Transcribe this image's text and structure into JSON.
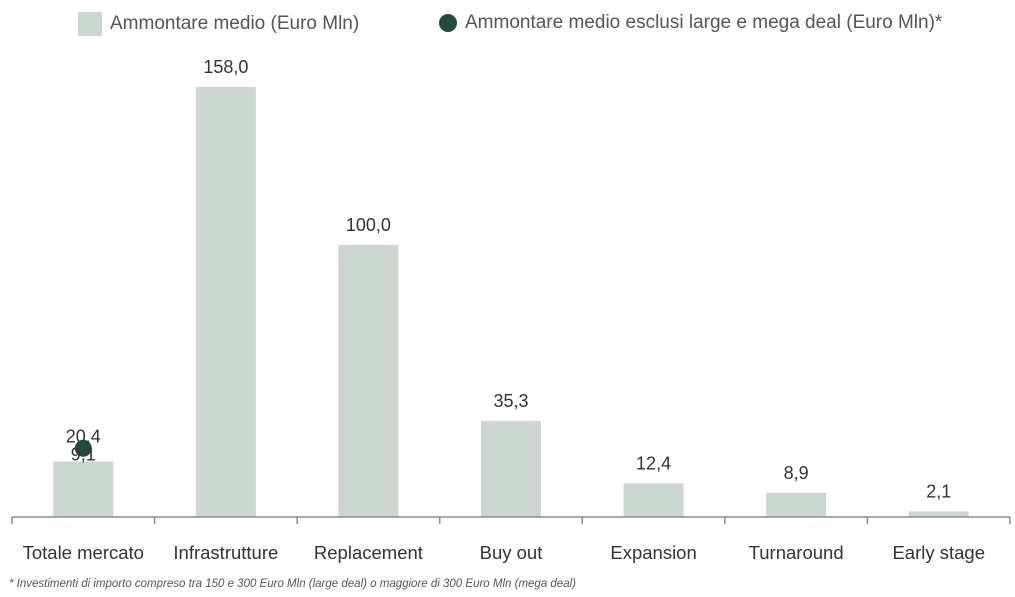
{
  "chart_data": {
    "type": "bar",
    "categories": [
      "Totale mercato",
      "Infrastrutture",
      "Replacement",
      "Buy out",
      "Expansion",
      "Turnaround",
      "Early stage"
    ],
    "series": [
      {
        "name": "Ammontare medio (Euro Mln)",
        "values": [
          20.4,
          158.0,
          100.0,
          35.3,
          12.4,
          8.9,
          2.1
        ],
        "value_labels": [
          "20,4",
          "158,0",
          "100,0",
          "35,3",
          "12,4",
          "8,9",
          "2,1"
        ],
        "color": "#cdd7d1",
        "style": "bar"
      },
      {
        "name": "Ammontare medio esclusi large e mega deal (Euro Mln)*",
        "values": [
          9.1,
          null,
          null,
          null,
          null,
          null,
          null
        ],
        "value_labels": [
          "9,1",
          null,
          null,
          null,
          null,
          null,
          null
        ],
        "color": "#244a3a",
        "style": "dot"
      }
    ],
    "ylim": [
      0,
      170
    ],
    "grid": false,
    "legend_position": "top",
    "axis_color": "#8c8c8c"
  },
  "footnote": "* Investimenti di importo compreso tra 150 e 300 Euro Mln (large deal) o maggiore di 300 Euro Mln (mega deal)"
}
